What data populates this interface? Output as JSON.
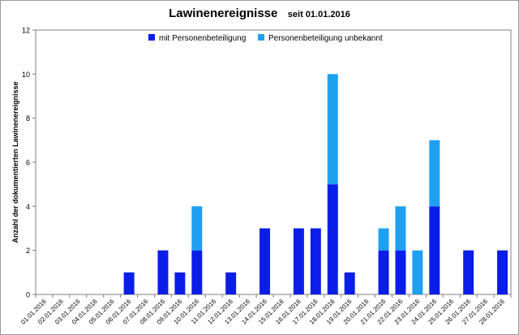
{
  "chart_data": {
    "type": "bar",
    "stacked": true,
    "title": "Lawinenereignisse",
    "subtitle": "seit 01.01.2016",
    "ylabel": "Anzahl der dokumentierten Lawinenereignisse",
    "xlabel": "",
    "ylim": [
      0,
      12
    ],
    "yticks": [
      0,
      2,
      4,
      6,
      8,
      10,
      12
    ],
    "legend_position": "top-center",
    "categories": [
      "01.01.2016",
      "02.01.2016",
      "03.01.2016",
      "04.01.2016",
      "05.01.2016",
      "06.01.2016",
      "07.01.2016",
      "08.01.2016",
      "09.01.2016",
      "10.01.2016",
      "11.01.2016",
      "12.01.2016",
      "13.01.2016",
      "14.01.2016",
      "15.01.2016",
      "16.01.2016",
      "17.01.2016",
      "18.01.2016",
      "19.01.2016",
      "20.01.2016",
      "21.01.2016",
      "22.01.2016",
      "23.01.2016",
      "24.01.2016",
      "25.01.2016",
      "26.01.2016",
      "27.01.2016",
      "28.01.2016"
    ],
    "series": [
      {
        "name": "mit Personenbeteiligung",
        "color": "#0a1ee8",
        "values": [
          0,
          0,
          0,
          0,
          0,
          1,
          0,
          2,
          1,
          2,
          0,
          1,
          0,
          3,
          0,
          3,
          3,
          5,
          1,
          0,
          2,
          2,
          0,
          4,
          0,
          2,
          0,
          2
        ]
      },
      {
        "name": "Personenbeteiligung unbekannt",
        "color": "#1ea0f0",
        "values": [
          0,
          0,
          0,
          0,
          0,
          0,
          0,
          0,
          0,
          2,
          0,
          0,
          0,
          0,
          0,
          0,
          0,
          5,
          0,
          0,
          1,
          2,
          2,
          3,
          0,
          0,
          0,
          0
        ]
      }
    ]
  }
}
